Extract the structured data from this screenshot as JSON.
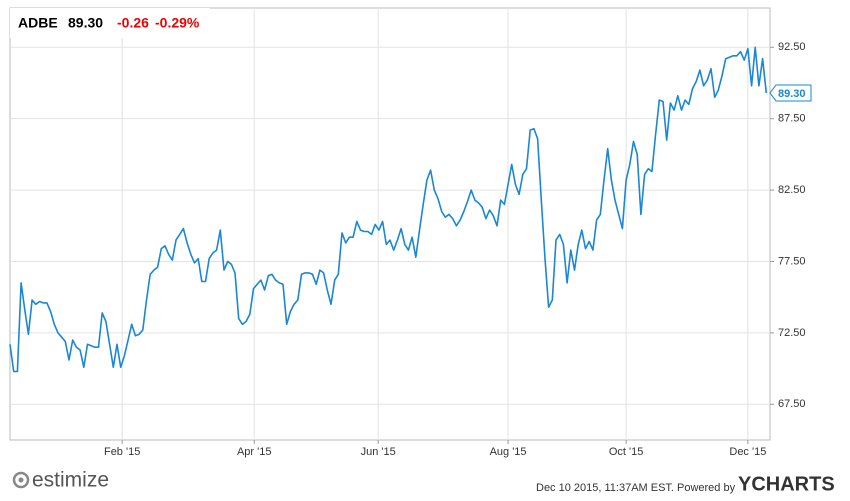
{
  "header": {
    "ticker": "ADBE",
    "price": "89.30",
    "change": "-0.26",
    "change_pct": "-0.29%"
  },
  "chart_data": {
    "type": "line",
    "series": [
      {
        "name": "ADBE",
        "color": "#1a87d5",
        "values": [
          71.7,
          69.8,
          69.8,
          76.0,
          74.1,
          72.4,
          74.8,
          74.5,
          74.7,
          74.6,
          74.6,
          74.0,
          73.1,
          72.5,
          72.2,
          71.9,
          70.6,
          72.0,
          71.5,
          71.3,
          70.1,
          71.7,
          71.6,
          71.5,
          71.5,
          73.9,
          73.3,
          71.7,
          70.1,
          71.7,
          70.1,
          70.9,
          72.0,
          73.1,
          72.3,
          72.4,
          72.7,
          74.8,
          76.6,
          76.9,
          77.1,
          78.4,
          78.6,
          78.0,
          77.6,
          79.0,
          79.4,
          79.8,
          78.8,
          78.0,
          77.4,
          77.7,
          76.1,
          76.1,
          77.7,
          78.1,
          78.3,
          79.7,
          76.9,
          77.5,
          77.3,
          76.7,
          73.5,
          73.1,
          73.3,
          73.8,
          75.6,
          75.9,
          76.2,
          75.5,
          76.5,
          76.6,
          76.2,
          76.0,
          75.9,
          73.1,
          74.0,
          74.5,
          74.8,
          76.6,
          76.7,
          76.7,
          76.6,
          75.9,
          76.9,
          76.7,
          75.5,
          74.5,
          76.2,
          76.6,
          79.5,
          78.8,
          79.2,
          79.2,
          80.3,
          79.7,
          79.6,
          79.6,
          79.4,
          80.1,
          79.7,
          80.3,
          78.7,
          79.0,
          78.3,
          79.0,
          79.8,
          78.7,
          78.3,
          79.2,
          77.8,
          79.7,
          81.5,
          83.2,
          83.9,
          82.5,
          81.9,
          81.0,
          80.6,
          80.8,
          80.5,
          80.0,
          80.4,
          81.0,
          81.7,
          82.5,
          81.8,
          81.6,
          81.3,
          80.5,
          81.1,
          80.7,
          80.0,
          81.8,
          81.5,
          82.9,
          84.3,
          82.9,
          82.2,
          83.6,
          84.0,
          86.7,
          86.8,
          86.1,
          81.8,
          77.7,
          74.3,
          74.8,
          79.0,
          79.4,
          78.7,
          76.0,
          78.3,
          76.9,
          78.7,
          79.7,
          78.4,
          78.9,
          78.3,
          80.4,
          80.8,
          83.2,
          85.4,
          83.2,
          81.8,
          80.8,
          79.8,
          83.2,
          84.3,
          85.9,
          85.0,
          80.8,
          83.6,
          84.0,
          83.8,
          86.4,
          88.8,
          88.7,
          86.0,
          88.6,
          88.1,
          89.1,
          88.1,
          88.8,
          88.5,
          89.6,
          90.1,
          90.9,
          89.8,
          90.2,
          91.0,
          89.0,
          89.5,
          90.5,
          91.7,
          91.8,
          91.9,
          91.9,
          92.2,
          91.6,
          92.4,
          89.8,
          92.5,
          89.8,
          91.7,
          89.3
        ]
      }
    ],
    "xlim": [
      0,
      206
    ],
    "xticks": [
      {
        "value": 30.4,
        "label": "Feb '15"
      },
      {
        "value": 66.2,
        "label": "Apr '15"
      },
      {
        "value": 99.8,
        "label": "Jun '15"
      },
      {
        "value": 135,
        "label": "Aug '15"
      },
      {
        "value": 167,
        "label": "Oct '15"
      },
      {
        "value": 200,
        "label": "Dec '15"
      }
    ],
    "ylim": [
      65,
      95.25
    ],
    "yticks": [
      {
        "value": 67.5,
        "label": "67.50"
      },
      {
        "value": 72.5,
        "label": "72.50"
      },
      {
        "value": 77.5,
        "label": "77.50"
      },
      {
        "value": 82.5,
        "label": "82.50"
      },
      {
        "value": 87.5,
        "label": "87.50"
      },
      {
        "value": 92.5,
        "label": "92.50"
      }
    ],
    "grid": true
  },
  "footer": {
    "logo": "estimize",
    "timestamp": "Dec 10 2015, 11:37AM EST.",
    "powered_by": "Powered by",
    "brand": "YCHARTS"
  }
}
